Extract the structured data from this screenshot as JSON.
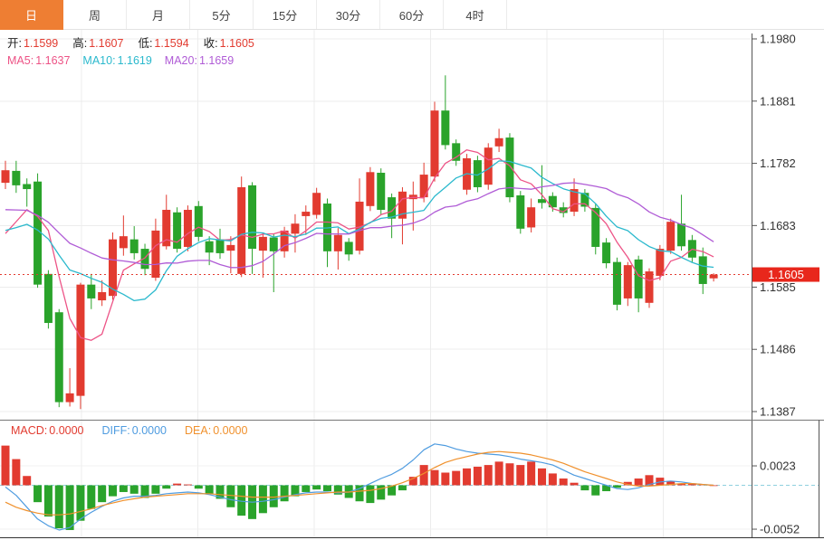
{
  "tabs": {
    "items": [
      {
        "id": "day",
        "label": "日",
        "active": true
      },
      {
        "id": "week",
        "label": "周",
        "active": false
      },
      {
        "id": "month",
        "label": "月",
        "active": false
      },
      {
        "id": "5min",
        "label": "5分",
        "active": false
      },
      {
        "id": "15min",
        "label": "15分",
        "active": false
      },
      {
        "id": "30min",
        "label": "30分",
        "active": false
      },
      {
        "id": "60min",
        "label": "60分",
        "active": false
      },
      {
        "id": "4hour",
        "label": "4时",
        "active": false
      }
    ]
  },
  "ohlc": {
    "items": [
      {
        "id": "open",
        "label": "开:",
        "value": "1.1599"
      },
      {
        "id": "high",
        "label": "高:",
        "value": "1.1607"
      },
      {
        "id": "low",
        "label": "低:",
        "value": "1.1594"
      },
      {
        "id": "close",
        "label": "收:",
        "value": "1.1605"
      }
    ]
  },
  "ma": {
    "items": [
      {
        "id": "ma5",
        "label": "MA5:",
        "value": "1.1637"
      },
      {
        "id": "ma10",
        "label": "MA10:",
        "value": "1.1619"
      },
      {
        "id": "ma20",
        "label": "MA20:",
        "value": "1.1659"
      }
    ]
  },
  "macd_header": {
    "items": [
      {
        "id": "macd",
        "label": "MACD:",
        "value": "0.0000"
      },
      {
        "id": "diff",
        "label": "DIFF:",
        "value": "0.0000"
      },
      {
        "id": "dea",
        "label": "DEA:",
        "value": "0.0000"
      }
    ]
  },
  "price_badge": {
    "label": "1.1605"
  },
  "colors": {
    "up": "#e23b30",
    "down": "#2aa32b",
    "accent_tab": "#ee7e33",
    "ma5": "#ed5386",
    "ma10": "#2bb9cd",
    "ma20": "#b05cd6",
    "diff": "#4f9ce0",
    "dea": "#f0912d",
    "badge": "#e8271c",
    "price_line": "#e23b30",
    "grid": "#ececec",
    "axis": "#555555",
    "dashed_zero": "#8fd0df"
  },
  "chart_data": {
    "type": "candlestick+macd",
    "timeframe": "日",
    "legend": [
      "MA5",
      "MA10",
      "MA20",
      "MACD",
      "DIFF",
      "DEA"
    ],
    "grid": true,
    "x_labels": [],
    "price_axis": {
      "max": 1.198,
      "min": 1.1387,
      "ticks": [
        "1.1980",
        "1.1881",
        "1.1782",
        "1.1683",
        "1.1585",
        "1.1486",
        "1.1387"
      ],
      "tick_values": [
        1.198,
        1.1881,
        1.1782,
        1.1683,
        1.1585,
        1.1486,
        1.1387
      ]
    },
    "last_price": 1.1605,
    "ma_periods": [
      5,
      10,
      20
    ],
    "ma_seed": [
      1.1755,
      1.1752,
      1.175,
      1.1748,
      1.1745,
      1.1742,
      1.1738,
      1.1733,
      1.1728,
      1.1722,
      1.17,
      1.169,
      1.168,
      1.167,
      1.166,
      1.1652,
      1.1646,
      1.1642,
      1.164
    ],
    "candles": [
      [
        1.1751,
        1.1786,
        1.1741,
        1.1771
      ],
      [
        1.177,
        1.1786,
        1.1735,
        1.1747
      ],
      [
        1.1749,
        1.1758,
        1.1713,
        1.1741
      ],
      [
        1.1753,
        1.1766,
        1.1584,
        1.1589
      ],
      [
        1.1606,
        1.1612,
        1.1519,
        1.1528
      ],
      [
        1.1545,
        1.155,
        1.1394,
        1.1402
      ],
      [
        1.1402,
        1.1456,
        1.1395,
        1.1416
      ],
      [
        1.1412,
        1.1592,
        1.1391,
        1.1589
      ],
      [
        1.1589,
        1.1606,
        1.155,
        1.1567
      ],
      [
        1.1564,
        1.1596,
        1.1555,
        1.1577
      ],
      [
        1.1571,
        1.1672,
        1.1565,
        1.1661
      ],
      [
        1.1647,
        1.1699,
        1.1635,
        1.1666
      ],
      [
        1.1661,
        1.1682,
        1.1629,
        1.1639
      ],
      [
        1.1646,
        1.1654,
        1.1604,
        1.1614
      ],
      [
        1.16,
        1.1694,
        1.1595,
        1.1675
      ],
      [
        1.165,
        1.1732,
        1.1645,
        1.1708
      ],
      [
        1.1704,
        1.1712,
        1.164,
        1.1646
      ],
      [
        1.1649,
        1.1715,
        1.1642,
        1.1708
      ],
      [
        1.1714,
        1.1722,
        1.1658,
        1.1665
      ],
      [
        1.1658,
        1.1666,
        1.162,
        1.164
      ],
      [
        1.1661,
        1.1678,
        1.163,
        1.1639
      ],
      [
        1.1643,
        1.1666,
        1.1607,
        1.1652
      ],
      [
        1.1606,
        1.1761,
        1.1601,
        1.1744
      ],
      [
        1.1747,
        1.1752,
        1.1606,
        1.1646
      ],
      [
        1.1643,
        1.1672,
        1.16,
        1.1665
      ],
      [
        1.1664,
        1.167,
        1.1577,
        1.1642
      ],
      [
        1.1642,
        1.1681,
        1.1632,
        1.1675
      ],
      [
        1.167,
        1.1701,
        1.164,
        1.1686
      ],
      [
        1.1698,
        1.1715,
        1.1668,
        1.1705
      ],
      [
        1.17,
        1.1743,
        1.1694,
        1.1735
      ],
      [
        1.1718,
        1.1726,
        1.1617,
        1.1642
      ],
      [
        1.1642,
        1.1679,
        1.1613,
        1.1668
      ],
      [
        1.1657,
        1.1663,
        1.1627,
        1.1637
      ],
      [
        1.1643,
        1.1758,
        1.1637,
        1.1721
      ],
      [
        1.1714,
        1.1776,
        1.1706,
        1.1768
      ],
      [
        1.1767,
        1.1774,
        1.17,
        1.1708
      ],
      [
        1.1728,
        1.1734,
        1.1663,
        1.1694
      ],
      [
        1.1694,
        1.1744,
        1.1653,
        1.1737
      ],
      [
        1.1725,
        1.1753,
        1.1675,
        1.1732
      ],
      [
        1.1728,
        1.1783,
        1.172,
        1.1764
      ],
      [
        1.1761,
        1.188,
        1.1753,
        1.1866
      ],
      [
        1.1866,
        1.1922,
        1.1804,
        1.1811
      ],
      [
        1.1814,
        1.182,
        1.1778,
        1.1786
      ],
      [
        1.174,
        1.1797,
        1.1732,
        1.179
      ],
      [
        1.1787,
        1.1794,
        1.1736,
        1.1744
      ],
      [
        1.1748,
        1.1814,
        1.174,
        1.1807
      ],
      [
        1.1809,
        1.1837,
        1.18,
        1.1822
      ],
      [
        1.1823,
        1.183,
        1.172,
        1.1728
      ],
      [
        1.1731,
        1.1738,
        1.167,
        1.1678
      ],
      [
        1.168,
        1.1726,
        1.1672,
        1.1712
      ],
      [
        1.1725,
        1.1779,
        1.171,
        1.1719
      ],
      [
        1.173,
        1.1736,
        1.1705,
        1.1712
      ],
      [
        1.1712,
        1.172,
        1.1696,
        1.1703
      ],
      [
        1.1705,
        1.1758,
        1.1698,
        1.1741
      ],
      [
        1.1735,
        1.1741,
        1.1705,
        1.1713
      ],
      [
        1.1711,
        1.1718,
        1.1637,
        1.1649
      ],
      [
        1.1656,
        1.1663,
        1.1615,
        1.1623
      ],
      [
        1.1625,
        1.1632,
        1.1548,
        1.1557
      ],
      [
        1.1567,
        1.1625,
        1.1555,
        1.162
      ],
      [
        1.1629,
        1.1635,
        1.1545,
        1.1567
      ],
      [
        1.156,
        1.1615,
        1.1552,
        1.161
      ],
      [
        1.1603,
        1.1652,
        1.1596,
        1.1646
      ],
      [
        1.1643,
        1.1694,
        1.1638,
        1.1689
      ],
      [
        1.1686,
        1.1732,
        1.1643,
        1.165
      ],
      [
        1.166,
        1.1668,
        1.1625,
        1.1632
      ],
      [
        1.1634,
        1.1648,
        1.1574,
        1.159
      ],
      [
        1.1599,
        1.1607,
        1.1594,
        1.1605
      ]
    ],
    "macd_axis": {
      "ticks": [
        "0.0023",
        "-0.0052"
      ],
      "tick_values": [
        0.0023,
        -0.0052
      ]
    },
    "macd": {
      "histogram": [
        0.0047,
        0.0031,
        0.0011,
        -0.002,
        -0.0037,
        -0.0051,
        -0.0053,
        -0.0042,
        -0.0028,
        -0.002,
        -0.0013,
        -0.0008,
        -0.001,
        -0.0015,
        -0.001,
        -0.0004,
        0.0002,
        0.0001,
        -0.0004,
        -0.001,
        -0.0016,
        -0.0026,
        -0.0036,
        -0.004,
        -0.0033,
        -0.0026,
        -0.0019,
        -0.0013,
        -0.0008,
        -0.0005,
        -0.0007,
        -0.0011,
        -0.0015,
        -0.0019,
        -0.0021,
        -0.0017,
        -0.0012,
        -0.0006,
        0.001,
        0.0024,
        0.0018,
        0.0015,
        0.0017,
        0.002,
        0.0022,
        0.0024,
        0.0028,
        0.0026,
        0.0024,
        0.0028,
        0.002,
        0.0014,
        0.0008,
        0.0003,
        -0.0006,
        -0.0012,
        -0.0007,
        -0.0003,
        0.0004,
        0.0008,
        0.0012,
        0.0009,
        0.0005,
        0.0002,
        0.0002,
        0.0001,
        0.0
      ],
      "diff": [
        -0.0002,
        -0.0012,
        -0.0026,
        -0.004,
        -0.0048,
        -0.0053,
        -0.005,
        -0.004,
        -0.0032,
        -0.0025,
        -0.0019,
        -0.0015,
        -0.0013,
        -0.0013,
        -0.0012,
        -0.001,
        -0.0009,
        -0.0008,
        -0.0009,
        -0.0011,
        -0.0014,
        -0.0017,
        -0.0019,
        -0.002,
        -0.0019,
        -0.0017,
        -0.0014,
        -0.0011,
        -0.0009,
        -0.0008,
        -0.0008,
        -0.0009,
        -0.0008,
        -0.0004,
        0.0002,
        0.0008,
        0.0013,
        0.002,
        0.003,
        0.0042,
        0.0049,
        0.0047,
        0.0043,
        0.004,
        0.0038,
        0.0037,
        0.0036,
        0.0034,
        0.0031,
        0.0029,
        0.0027,
        0.0024,
        0.0018,
        0.0012,
        0.0008,
        0.0004,
        0.0,
        -0.0004,
        -0.0005,
        -0.0003,
        0.0001,
        0.0004,
        0.0005,
        0.0004,
        0.0002,
        0.0001,
        0.0
      ],
      "dea": [
        -0.002,
        -0.0026,
        -0.003,
        -0.0033,
        -0.0035,
        -0.0035,
        -0.0034,
        -0.0031,
        -0.0028,
        -0.0024,
        -0.0021,
        -0.0018,
        -0.0016,
        -0.0014,
        -0.0013,
        -0.0012,
        -0.0011,
        -0.001,
        -0.001,
        -0.001,
        -0.0011,
        -0.0012,
        -0.0013,
        -0.0014,
        -0.0014,
        -0.0014,
        -0.0013,
        -0.0012,
        -0.0011,
        -0.001,
        -0.0009,
        -0.0008,
        -0.0008,
        -0.0007,
        -0.0006,
        -0.0004,
        -0.0001,
        0.0003,
        0.0008,
        0.0014,
        0.0021,
        0.0027,
        0.0031,
        0.0034,
        0.0037,
        0.0039,
        0.004,
        0.0039,
        0.0038,
        0.0036,
        0.0033,
        0.003,
        0.0026,
        0.0021,
        0.0016,
        0.0012,
        0.0008,
        0.0004,
        0.0001,
        -0.0001,
        -0.0001,
        0.0,
        0.0001,
        0.0002,
        0.0002,
        0.0001,
        0.0
      ]
    }
  }
}
